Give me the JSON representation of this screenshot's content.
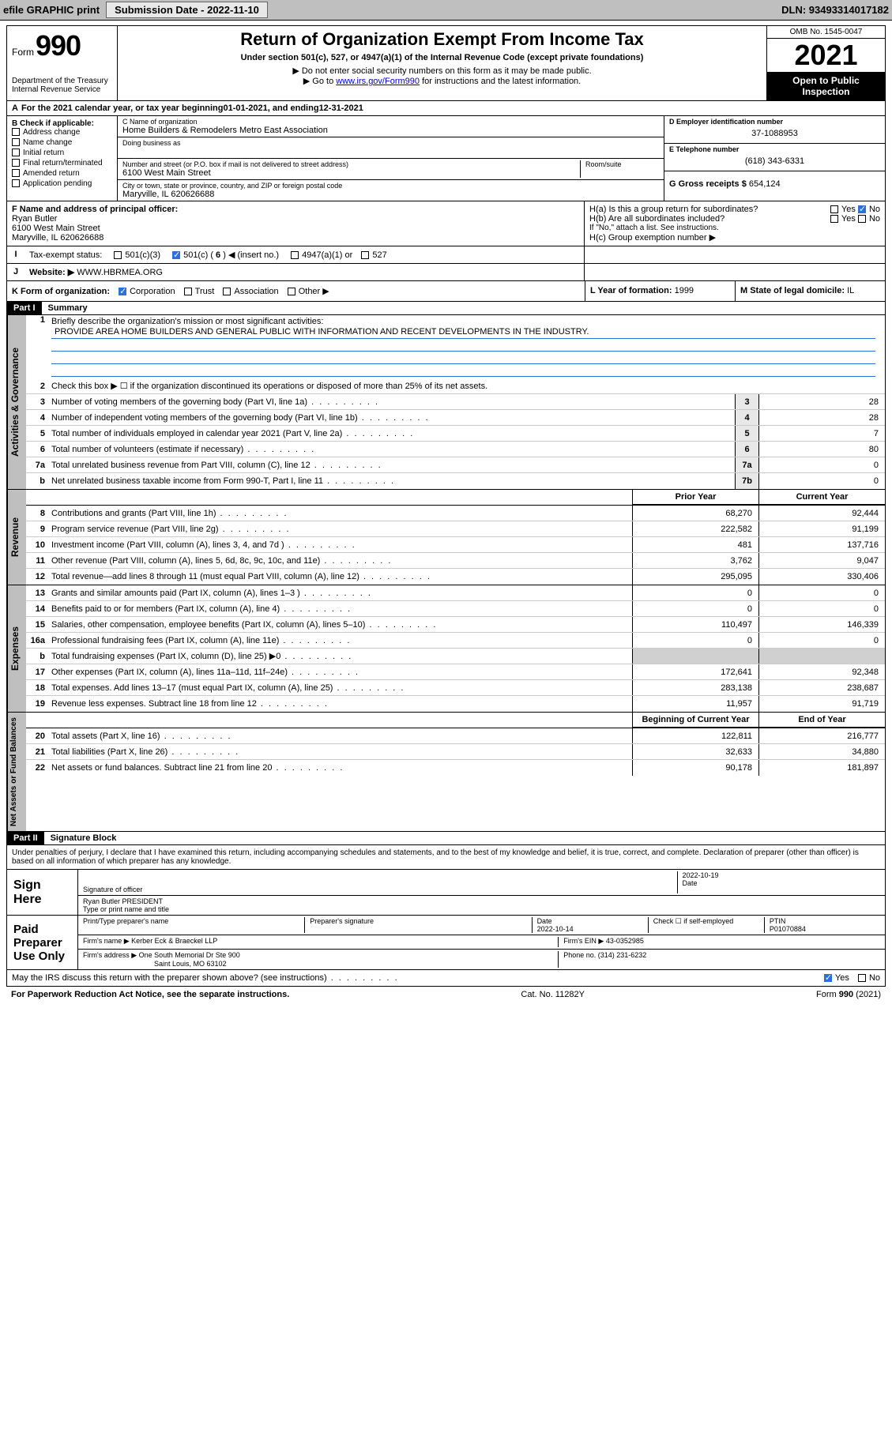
{
  "toolbar": {
    "efile": "efile GRAPHIC print",
    "submission_label": "Submission Date - 2022-11-10",
    "dln": "DLN: 93493314017182"
  },
  "header": {
    "form_word": "Form",
    "form_num": "990",
    "dept": "Department of the Treasury",
    "irs": "Internal Revenue Service",
    "title": "Return of Organization Exempt From Income Tax",
    "subtitle": "Under section 501(c), 527, or 4947(a)(1) of the Internal Revenue Code (except private foundations)",
    "note1": "▶ Do not enter social security numbers on this form as it may be made public.",
    "note2_pre": "▶ Go to ",
    "note2_link": "www.irs.gov/Form990",
    "note2_post": " for instructions and the latest information.",
    "omb": "OMB No. 1545-0047",
    "year": "2021",
    "open1": "Open to Public",
    "open2": "Inspection"
  },
  "period": {
    "text_pre": "For the 2021 calendar year, or tax year beginning ",
    "begin": "01-01-2021",
    "mid": " , and ending ",
    "end": "12-31-2021"
  },
  "sectionB": {
    "title": "B Check if applicable:",
    "items": [
      "Address change",
      "Name change",
      "Initial return",
      "Final return/terminated",
      "Amended return",
      "Application pending"
    ]
  },
  "sectionC": {
    "name_label": "C Name of organization",
    "name": "Home Builders & Remodelers Metro East Association",
    "dba_label": "Doing business as",
    "street_label": "Number and street (or P.O. box if mail is not delivered to street address)",
    "room_label": "Room/suite",
    "street": "6100 West Main Street",
    "city_label": "City or town, state or province, country, and ZIP or foreign postal code",
    "city": "Maryville, IL  620626688"
  },
  "sectionD": {
    "ein_label": "D Employer identification number",
    "ein": "37-1088953",
    "phone_label": "E Telephone number",
    "phone": "(618) 343-6331",
    "gross_label": "G Gross receipts $",
    "gross": "654,124"
  },
  "sectionF": {
    "label": "F Name and address of principal officer:",
    "name": "Ryan Butler",
    "street": "6100 West Main Street",
    "city": "Maryville, IL  620626688"
  },
  "sectionH": {
    "ha_label": "H(a)  Is this a group return for subordinates?",
    "hb_label": "H(b)  Are all subordinates included?",
    "hb_note": "If \"No,\" attach a list. See instructions.",
    "hc_label": "H(c)  Group exemption number ▶",
    "yes": "Yes",
    "no": "No"
  },
  "sectionI": {
    "label": "Tax-exempt status:",
    "c3": "501(c)(3)",
    "c_pre": "501(c) ( ",
    "c_num": "6",
    "c_post": " ) ◀ (insert no.)",
    "a1": "4947(a)(1) or",
    "s527": "527"
  },
  "sectionJ": {
    "label": "Website: ▶",
    "value": "WWW.HBRMEA.ORG"
  },
  "sectionK": {
    "label": "K Form of organization:",
    "opts": [
      "Corporation",
      "Trust",
      "Association",
      "Other ▶"
    ]
  },
  "sectionL": {
    "label": "L Year of formation:",
    "value": "1999"
  },
  "sectionM": {
    "label": "M State of legal domicile:",
    "value": "IL"
  },
  "part1": {
    "bar": "Part I",
    "title": "Summary",
    "tab_gov": "Activities & Governance",
    "tab_rev": "Revenue",
    "tab_exp": "Expenses",
    "tab_net": "Net Assets or Fund Balances",
    "l1_label": "Briefly describe the organization's mission or most significant activities:",
    "l1_text": "PROVIDE AREA HOME BUILDERS AND GENERAL PUBLIC WITH INFORMATION AND RECENT DEVELOPMENTS IN THE INDUSTRY.",
    "l2": "Check this box ▶ ☐  if the organization discontinued its operations or disposed of more than 25% of its net assets.",
    "col_prior": "Prior Year",
    "col_curr": "Current Year",
    "col_begin": "Beginning of Current Year",
    "col_end": "End of Year",
    "lines_gov": [
      {
        "n": "3",
        "d": "Number of voting members of the governing body (Part VI, line 1a)",
        "box": "3",
        "v": "28"
      },
      {
        "n": "4",
        "d": "Number of independent voting members of the governing body (Part VI, line 1b)",
        "box": "4",
        "v": "28"
      },
      {
        "n": "5",
        "d": "Total number of individuals employed in calendar year 2021 (Part V, line 2a)",
        "box": "5",
        "v": "7"
      },
      {
        "n": "6",
        "d": "Total number of volunteers (estimate if necessary)",
        "box": "6",
        "v": "80"
      },
      {
        "n": "7a",
        "d": "Total unrelated business revenue from Part VIII, column (C), line 12",
        "box": "7a",
        "v": "0"
      },
      {
        "n": "b",
        "d": "Net unrelated business taxable income from Form 990-T, Part I, line 11",
        "box": "7b",
        "v": "0"
      }
    ],
    "lines_rev": [
      {
        "n": "8",
        "d": "Contributions and grants (Part VIII, line 1h)",
        "p": "68,270",
        "c": "92,444"
      },
      {
        "n": "9",
        "d": "Program service revenue (Part VIII, line 2g)",
        "p": "222,582",
        "c": "91,199"
      },
      {
        "n": "10",
        "d": "Investment income (Part VIII, column (A), lines 3, 4, and 7d )",
        "p": "481",
        "c": "137,716"
      },
      {
        "n": "11",
        "d": "Other revenue (Part VIII, column (A), lines 5, 6d, 8c, 9c, 10c, and 11e)",
        "p": "3,762",
        "c": "9,047"
      },
      {
        "n": "12",
        "d": "Total revenue—add lines 8 through 11 (must equal Part VIII, column (A), line 12)",
        "p": "295,095",
        "c": "330,406"
      }
    ],
    "lines_exp": [
      {
        "n": "13",
        "d": "Grants and similar amounts paid (Part IX, column (A), lines 1–3 )",
        "p": "0",
        "c": "0"
      },
      {
        "n": "14",
        "d": "Benefits paid to or for members (Part IX, column (A), line 4)",
        "p": "0",
        "c": "0"
      },
      {
        "n": "15",
        "d": "Salaries, other compensation, employee benefits (Part IX, column (A), lines 5–10)",
        "p": "110,497",
        "c": "146,339"
      },
      {
        "n": "16a",
        "d": "Professional fundraising fees (Part IX, column (A), line 11e)",
        "p": "0",
        "c": "0"
      },
      {
        "n": "b",
        "d": "Total fundraising expenses (Part IX, column (D), line 25) ▶0",
        "p": "",
        "c": "",
        "shade": true
      },
      {
        "n": "17",
        "d": "Other expenses (Part IX, column (A), lines 11a–11d, 11f–24e)",
        "p": "172,641",
        "c": "92,348"
      },
      {
        "n": "18",
        "d": "Total expenses. Add lines 13–17 (must equal Part IX, column (A), line 25)",
        "p": "283,138",
        "c": "238,687"
      },
      {
        "n": "19",
        "d": "Revenue less expenses. Subtract line 18 from line 12",
        "p": "11,957",
        "c": "91,719"
      }
    ],
    "lines_net": [
      {
        "n": "20",
        "d": "Total assets (Part X, line 16)",
        "p": "122,811",
        "c": "216,777"
      },
      {
        "n": "21",
        "d": "Total liabilities (Part X, line 26)",
        "p": "32,633",
        "c": "34,880"
      },
      {
        "n": "22",
        "d": "Net assets or fund balances. Subtract line 21 from line 20",
        "p": "90,178",
        "c": "181,897"
      }
    ]
  },
  "part2": {
    "bar": "Part II",
    "title": "Signature Block",
    "jurat": "Under penalties of perjury, I declare that I have examined this return, including accompanying schedules and statements, and to the best of my knowledge and belief, it is true, correct, and complete. Declaration of preparer (other than officer) is based on all information of which preparer has any knowledge.",
    "sign_here": "Sign Here",
    "sig_officer": "Signature of officer",
    "sig_date": "Date",
    "sig_date_val": "2022-10-19",
    "sig_name": "Ryan Butler  PRESIDENT",
    "sig_name_label": "Type or print name and title",
    "paid": "Paid Preparer Use Only",
    "prep_name_label": "Print/Type preparer's name",
    "prep_sig_label": "Preparer's signature",
    "prep_date_label": "Date",
    "prep_date": "2022-10-14",
    "prep_check_label": "Check ☐ if self-employed",
    "ptin_label": "PTIN",
    "ptin": "P01070884",
    "firm_name_label": "Firm's name      ▶",
    "firm_name": "Kerber Eck & Braeckel LLP",
    "firm_ein_label": "Firm's EIN ▶",
    "firm_ein": "43-0352985",
    "firm_addr_label": "Firm's address ▶",
    "firm_addr1": "One South Memorial Dr Ste 900",
    "firm_addr2": "Saint Louis, MO  63102",
    "firm_phone_label": "Phone no.",
    "firm_phone": "(314) 231-6232",
    "discuss": "May the IRS discuss this return with the preparer shown above? (see instructions)"
  },
  "footer": {
    "left": "For Paperwork Reduction Act Notice, see the separate instructions.",
    "mid": "Cat. No. 11282Y",
    "right_pre": "Form ",
    "right_form": "990",
    "right_post": " (2021)"
  },
  "colors": {
    "toolbar_bg": "#bfbfbf",
    "link": "#0000cc",
    "check_blue": "#2e6fdb",
    "shade": "#d0d0d0"
  }
}
